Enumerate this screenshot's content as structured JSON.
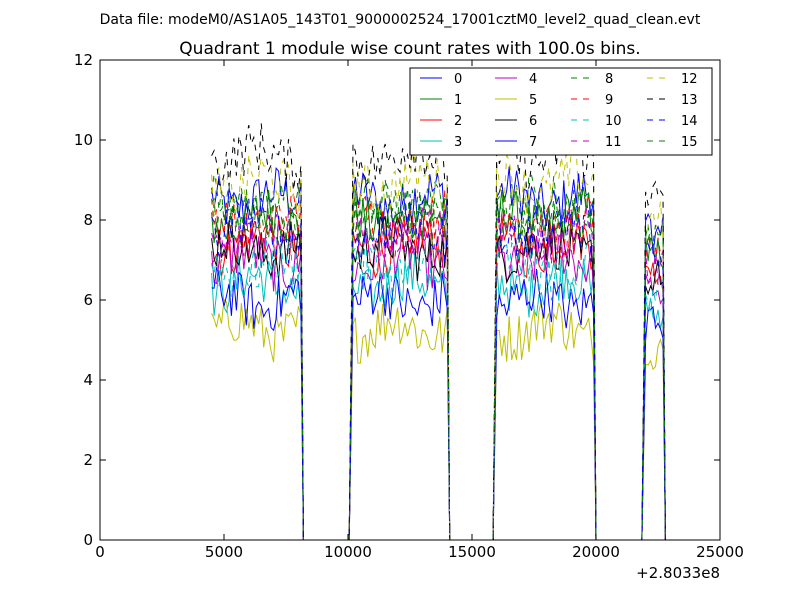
{
  "header": {
    "data_file": "Data file: modeM0/AS1A05_143T01_9000002524_17001cztM0_level2_quad_clean.evt"
  },
  "chart_data": {
    "type": "line",
    "title": "Quadrant 1 module wise count rates with 100.0s bins.",
    "xlabel": "",
    "ylabel": "",
    "x_offset_label": "+2.8033e8",
    "xlim": [
      0,
      25000
    ],
    "ylim": [
      0,
      12
    ],
    "xticks": [
      0,
      5000,
      10000,
      15000,
      20000,
      25000
    ],
    "yticks": [
      0,
      2,
      4,
      6,
      8,
      10,
      12
    ],
    "grid": false,
    "legend_placement": "top-right",
    "legend_columns": 4,
    "segments": [
      {
        "x_start": 4500,
        "x_end": 8100
      },
      {
        "x_start": 10200,
        "x_end": 14000
      },
      {
        "x_start": 16000,
        "x_end": 19900
      },
      {
        "x_start": 22000,
        "x_end": 22700
      }
    ],
    "series": [
      {
        "name": "0",
        "color": "#0000ff",
        "dash": "solid",
        "mean": 8.5
      },
      {
        "name": "1",
        "color": "#008000",
        "dash": "solid",
        "mean": 8.0
      },
      {
        "name": "2",
        "color": "#ff0000",
        "dash": "solid",
        "mean": 7.4
      },
      {
        "name": "3",
        "color": "#00bfbf",
        "dash": "solid",
        "mean": 6.4
      },
      {
        "name": "4",
        "color": "#bf00bf",
        "dash": "solid",
        "mean": 7.0
      },
      {
        "name": "5",
        "color": "#bfbf00",
        "dash": "solid",
        "mean": 5.3
      },
      {
        "name": "6",
        "color": "#000000",
        "dash": "solid",
        "mean": 7.3
      },
      {
        "name": "7",
        "color": "#0000ff",
        "dash": "solid",
        "mean": 6.0
      },
      {
        "name": "8",
        "color": "#008000",
        "dash": "dashed",
        "mean": 8.3
      },
      {
        "name": "9",
        "color": "#ff0000",
        "dash": "dashed",
        "mean": 7.9
      },
      {
        "name": "10",
        "color": "#00bfbf",
        "dash": "dashed",
        "mean": 6.8
      },
      {
        "name": "11",
        "color": "#bf00bf",
        "dash": "dashed",
        "mean": 7.6
      },
      {
        "name": "12",
        "color": "#bfbf00",
        "dash": "dashed",
        "mean": 8.9
      },
      {
        "name": "13",
        "color": "#000000",
        "dash": "dashed",
        "mean": 9.6
      },
      {
        "name": "14",
        "color": "#0000ff",
        "dash": "dashed",
        "mean": 7.8
      },
      {
        "name": "15",
        "color": "#008000",
        "dash": "dashed",
        "mean": 8.2
      }
    ]
  }
}
